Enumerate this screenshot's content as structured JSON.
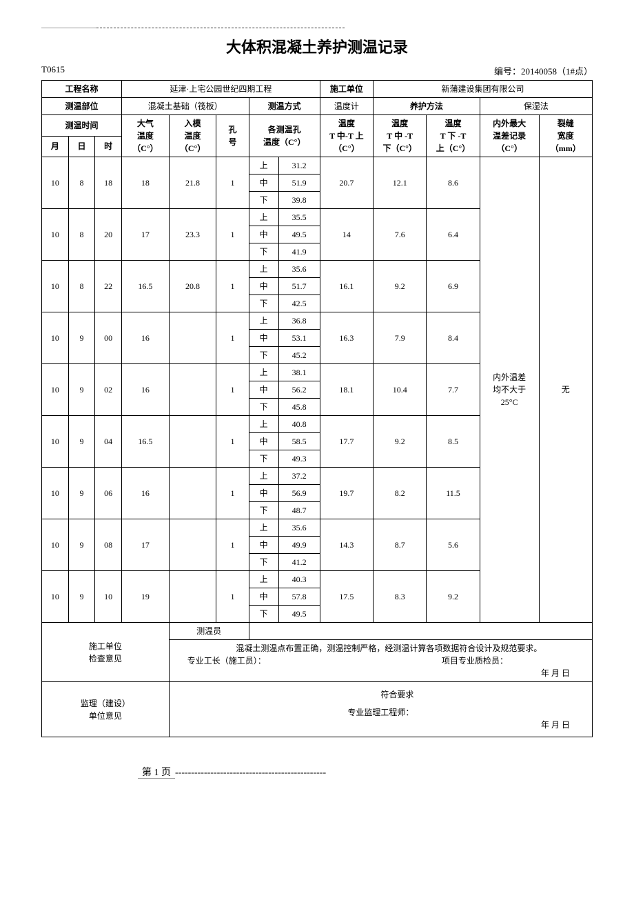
{
  "doc": {
    "title": "大体积混凝土养护测温记录",
    "code_left": "T0615",
    "code_right": "编号：20140058（1#点）",
    "footer_page": "第 1 页"
  },
  "header": {
    "project_label": "工程名称",
    "project_value": "延津·上宅公园世纪四期工程",
    "contractor_label": "施工单位",
    "contractor_value": "新蒲建设集团有限公司",
    "location_label": "测温部位",
    "location_value": "混凝土基础（筏板）",
    "method_label": "测温方式",
    "method_value": "温度计",
    "curing_label": "养护方法",
    "curing_value": "保湿法"
  },
  "cols": {
    "time_group": "测温时间",
    "month": "月",
    "day": "日",
    "hour": "时",
    "air_temp": "大气\n温度\n（C°）",
    "mold_temp": "入模\n温度\n（C°）",
    "hole_no": "孔\n号",
    "hole_temp": "各测温孔\n温度（C°）",
    "d1": "温度\nT 中-T 上\n（C°）",
    "d2": "温度\nT 中 -T\n下（C°）",
    "d3": "温度\nT 下 -T\n上（C°）",
    "max_diff": "内外最大\n温差记录\n（C°）",
    "crack": "裂缝\n宽度\n（mm）",
    "pos_up": "上",
    "pos_mid": "中",
    "pos_low": "下"
  },
  "summary": {
    "max_diff_note": "内外温差\n均不大于\n25°C",
    "crack_note": "无"
  },
  "rows": [
    {
      "m": "10",
      "d": "8",
      "h": "18",
      "air": "18",
      "mold": "21.8",
      "hole": "1",
      "up": "31.2",
      "mid": "51.9",
      "low": "39.8",
      "d1": "20.7",
      "d2": "12.1",
      "d3": "8.6"
    },
    {
      "m": "10",
      "d": "8",
      "h": "20",
      "air": "17",
      "mold": "23.3",
      "hole": "1",
      "up": "35.5",
      "mid": "49.5",
      "low": "41.9",
      "d1": "14",
      "d2": "7.6",
      "d3": "6.4"
    },
    {
      "m": "10",
      "d": "8",
      "h": "22",
      "air": "16.5",
      "mold": "20.8",
      "hole": "1",
      "up": "35.6",
      "mid": "51.7",
      "low": "42.5",
      "d1": "16.1",
      "d2": "9.2",
      "d3": "6.9"
    },
    {
      "m": "10",
      "d": "9",
      "h": "00",
      "air": "16",
      "mold": "",
      "hole": "1",
      "up": "36.8",
      "mid": "53.1",
      "low": "45.2",
      "d1": "16.3",
      "d2": "7.9",
      "d3": "8.4"
    },
    {
      "m": "10",
      "d": "9",
      "h": "02",
      "air": "16",
      "mold": "",
      "hole": "1",
      "up": "38.1",
      "mid": "56.2",
      "low": "45.8",
      "d1": "18.1",
      "d2": "10.4",
      "d3": "7.7"
    },
    {
      "m": "10",
      "d": "9",
      "h": "04",
      "air": "16.5",
      "mold": "",
      "hole": "1",
      "up": "40.8",
      "mid": "58.5",
      "low": "49.3",
      "d1": "17.7",
      "d2": "9.2",
      "d3": "8.5"
    },
    {
      "m": "10",
      "d": "9",
      "h": "06",
      "air": "16",
      "mold": "",
      "hole": "1",
      "up": "37.2",
      "mid": "56.9",
      "low": "48.7",
      "d1": "19.7",
      "d2": "8.2",
      "d3": "11.5"
    },
    {
      "m": "10",
      "d": "9",
      "h": "08",
      "air": "17",
      "mold": "",
      "hole": "1",
      "up": "35.6",
      "mid": "49.9",
      "low": "41.2",
      "d1": "14.3",
      "d2": "8.7",
      "d3": "5.6"
    },
    {
      "m": "10",
      "d": "9",
      "h": "10",
      "air": "19",
      "mold": "",
      "hole": "1",
      "up": "40.3",
      "mid": "57.8",
      "low": "49.5",
      "d1": "17.5",
      "d2": "8.3",
      "d3": "9.2"
    }
  ],
  "bottom": {
    "contractor_opinion_label": "施工单位\n检查意见",
    "recorder_label": "测温员",
    "contractor_opinion_text": "混凝土测温点布置正确，测温控制严格，经测温计算各项数据符合设计及规范要求。",
    "foreman_label": "专业工长（施工员）：",
    "qc_label": "项目专业质检员：",
    "date_template": "年   月   日",
    "supervisor_opinion_label": "监理（建设）\n单位意见",
    "supervisor_ok": "符合要求",
    "supervisor_eng_label": "专业监理工程师："
  }
}
